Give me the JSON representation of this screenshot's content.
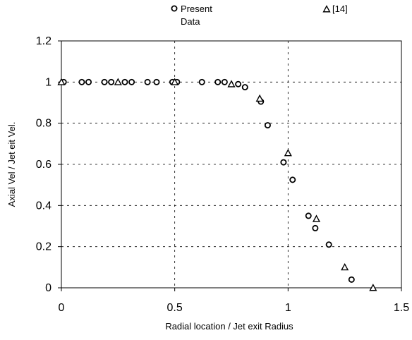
{
  "chart_data": {
    "type": "scatter",
    "title": "",
    "xlabel": "Radial location / Jet exit Radius",
    "ylabel": "Axial Vel / Jet eit Vel.",
    "xlim": [
      0,
      1.5
    ],
    "ylim": [
      0,
      1.2
    ],
    "xticks": [
      "0",
      "0.5",
      "1",
      "1.5"
    ],
    "yticks": [
      "0",
      "0.2",
      "0.4",
      "0.6",
      "0.8",
      "1",
      "1.2"
    ],
    "grid": "dashed, major ticks",
    "legend_position": "top",
    "series": [
      {
        "name": "Present Data",
        "marker": "open-circle",
        "color": "#000000",
        "points": [
          [
            0.01,
            1.0
          ],
          [
            0.09,
            1.0
          ],
          [
            0.12,
            1.0
          ],
          [
            0.19,
            1.0
          ],
          [
            0.22,
            1.0
          ],
          [
            0.28,
            1.0
          ],
          [
            0.31,
            1.0
          ],
          [
            0.38,
            1.0
          ],
          [
            0.42,
            1.0
          ],
          [
            0.49,
            1.0
          ],
          [
            0.51,
            1.0
          ],
          [
            0.62,
            1.0
          ],
          [
            0.69,
            1.0
          ],
          [
            0.72,
            1.0
          ],
          [
            0.78,
            0.99
          ],
          [
            0.81,
            0.975
          ],
          [
            0.88,
            0.905
          ],
          [
            0.91,
            0.79
          ],
          [
            0.98,
            0.61
          ],
          [
            1.02,
            0.525
          ],
          [
            1.09,
            0.35
          ],
          [
            1.12,
            0.29
          ],
          [
            1.18,
            0.21
          ],
          [
            1.28,
            0.04
          ]
        ]
      },
      {
        "name": "[14]",
        "marker": "open-triangle",
        "color": "#000000",
        "points": [
          [
            0.0,
            1.0
          ],
          [
            0.25,
            1.0
          ],
          [
            0.5,
            1.0
          ],
          [
            0.75,
            0.99
          ],
          [
            0.875,
            0.92
          ],
          [
            1.0,
            0.655
          ],
          [
            1.125,
            0.335
          ],
          [
            1.25,
            0.1
          ],
          [
            1.375,
            0.0
          ]
        ]
      }
    ]
  }
}
